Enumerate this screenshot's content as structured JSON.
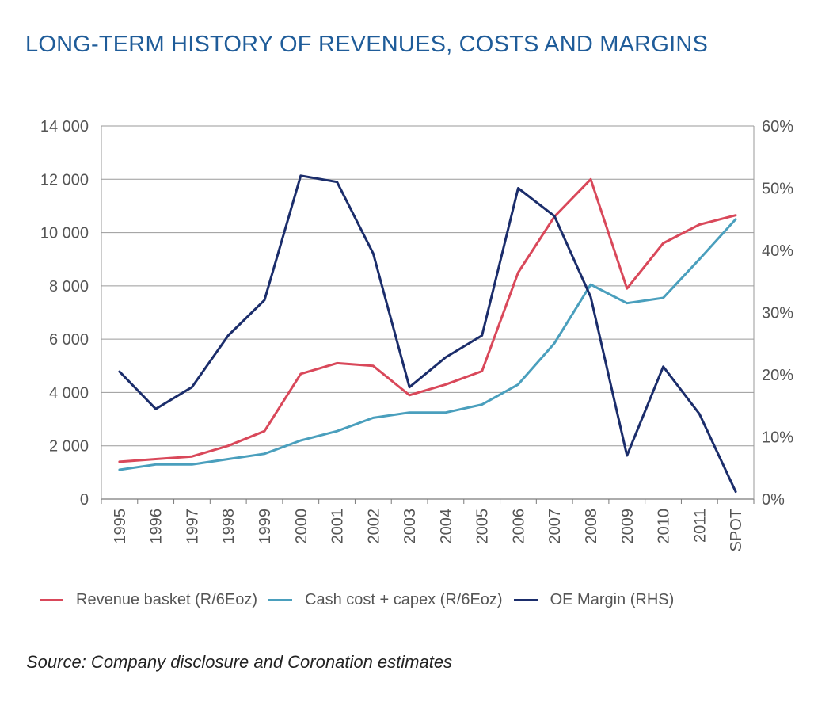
{
  "chart_data": {
    "type": "line",
    "title": "LONG-TERM HISTORY OF REVENUES, COSTS AND MARGINS",
    "categories": [
      "1995",
      "1996",
      "1997",
      "1998",
      "1999",
      "2000",
      "2001",
      "2002",
      "2003",
      "2004",
      "2005",
      "2006",
      "2007",
      "2008",
      "2009",
      "2010",
      "2011",
      "SPOT"
    ],
    "y_left": {
      "ylim": [
        0,
        14000
      ],
      "ticks": [
        0,
        2000,
        4000,
        6000,
        8000,
        10000,
        12000,
        14000
      ],
      "tick_labels": [
        "0",
        "2 000",
        "4 000",
        "6 000",
        "8 000",
        "10 000",
        "12 000",
        "14 000"
      ]
    },
    "y_right": {
      "ylim": [
        0,
        60
      ],
      "ticks": [
        0,
        10,
        20,
        30,
        40,
        50,
        60
      ],
      "tick_labels": [
        "0%",
        "10%",
        "20%",
        "30%",
        "40%",
        "50%",
        "60%"
      ]
    },
    "grid": true,
    "legend_position": "bottom",
    "series": [
      {
        "name": "Revenue basket (R/6Eoz)",
        "axis": "left",
        "color": "#d9485a",
        "values": [
          1400,
          1500,
          1600,
          2000,
          2550,
          4700,
          5100,
          5000,
          3900,
          4300,
          4800,
          8500,
          10600,
          12000,
          7900,
          9600,
          10300,
          10650
        ]
      },
      {
        "name": "Cash cost + capex (R/6Eoz)",
        "axis": "left",
        "color": "#4a9fbd",
        "values": [
          1100,
          1300,
          1300,
          1500,
          1700,
          2200,
          2550,
          3050,
          3250,
          3250,
          3550,
          4300,
          5850,
          8050,
          7350,
          7550,
          9000,
          10500
        ]
      },
      {
        "name": "OE Margin (RHS)",
        "axis": "right",
        "color": "#1b2d6b",
        "values": [
          20.5,
          14.5,
          18,
          26.3,
          32,
          52,
          51,
          39.5,
          18,
          22.8,
          26.3,
          50,
          45.5,
          32.5,
          7,
          21.3,
          13.7,
          1.2
        ]
      }
    ],
    "source": "Source: Company disclosure and Coronation estimates"
  }
}
